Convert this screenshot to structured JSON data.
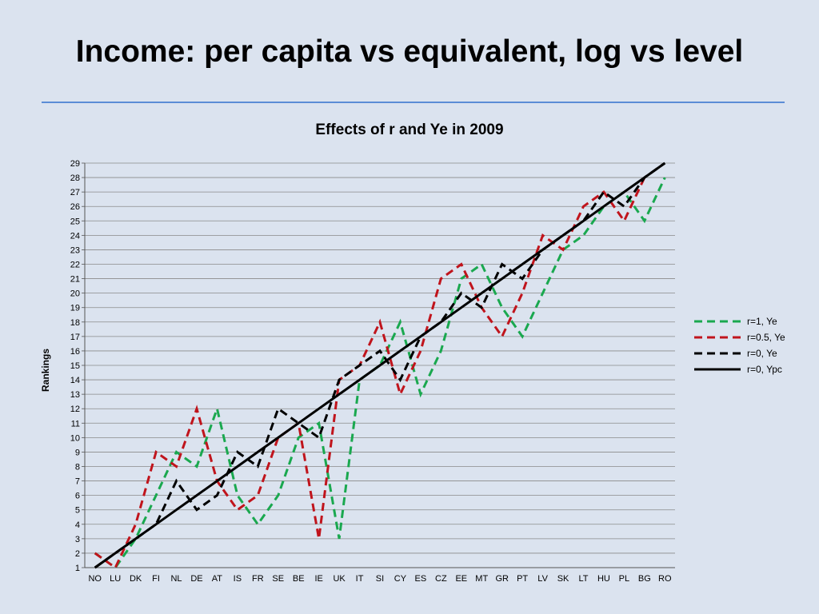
{
  "slide": {
    "title": "Income: per capita vs equivalent, log vs level"
  },
  "colors": {
    "background": "#dbe3ef",
    "rule": "#5b8dd6",
    "series_green": "#1aa84f",
    "series_red": "#c0141c",
    "series_black": "#000000"
  },
  "chart_data": {
    "type": "line",
    "title": "Effects of r and Ye in 2009",
    "xlabel": "",
    "ylabel": "Rankings",
    "ylim": [
      1,
      29
    ],
    "yticks": [
      1,
      2,
      3,
      4,
      5,
      6,
      7,
      8,
      9,
      10,
      11,
      12,
      13,
      14,
      15,
      16,
      17,
      18,
      19,
      20,
      21,
      22,
      23,
      24,
      25,
      26,
      27,
      28,
      29
    ],
    "grid": true,
    "legend_position": "right",
    "categories": [
      "NO",
      "LU",
      "DK",
      "FI",
      "NL",
      "DE",
      "AT",
      "IS",
      "FR",
      "SE",
      "BE",
      "IE",
      "UK",
      "IT",
      "SI",
      "CY",
      "ES",
      "CZ",
      "EE",
      "MT",
      "GR",
      "PT",
      "LV",
      "SK",
      "LT",
      "HU",
      "PL",
      "BG",
      "RO"
    ],
    "series": [
      {
        "name": "r=1, Ye",
        "style": "dashed",
        "color": "#1aa84f",
        "values": [
          2,
          1,
          3,
          6,
          9,
          8,
          12,
          6,
          4,
          6,
          10,
          11,
          3,
          14,
          15,
          18,
          13,
          16,
          21,
          22,
          19,
          17,
          20,
          23,
          24,
          26,
          27,
          25,
          28
        ]
      },
      {
        "name": "r=0.5, Ye",
        "style": "dashed",
        "color": "#c0141c",
        "values": [
          2,
          1,
          4,
          9,
          8,
          12,
          7,
          5,
          6,
          10,
          11,
          3,
          14,
          15,
          18,
          13,
          16,
          21,
          22,
          19,
          17,
          20,
          24,
          23,
          26,
          27,
          25,
          28,
          null
        ]
      },
      {
        "name": "r=0, Ye",
        "style": "dashed",
        "color": "#000000",
        "values": [
          1,
          2,
          3,
          4,
          7,
          5,
          6,
          9,
          8,
          12,
          11,
          10,
          14,
          15,
          16,
          14,
          17,
          18,
          20,
          19,
          22,
          21,
          23,
          24,
          25,
          27,
          26,
          28,
          29
        ]
      },
      {
        "name": "r=0, Ypc",
        "style": "solid",
        "color": "#000000",
        "values": [
          1,
          2,
          3,
          4,
          5,
          6,
          7,
          8,
          9,
          10,
          11,
          12,
          13,
          14,
          15,
          16,
          17,
          18,
          19,
          20,
          21,
          22,
          23,
          24,
          25,
          26,
          27,
          28,
          29
        ]
      }
    ]
  }
}
